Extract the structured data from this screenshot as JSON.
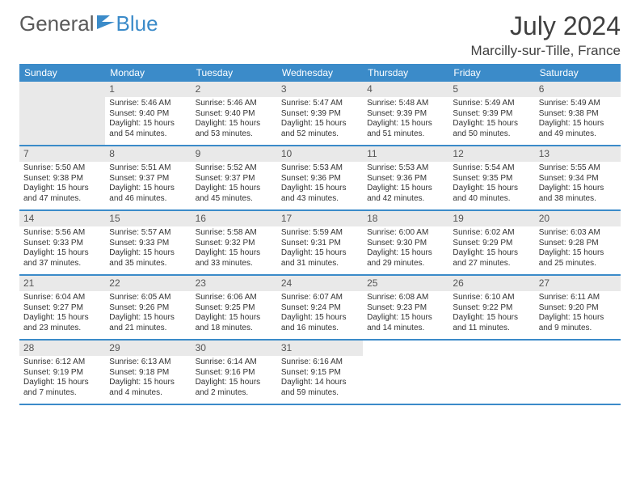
{
  "logo": {
    "text_left": "General",
    "text_right": "Blue",
    "flag_color": "#3b8bc9"
  },
  "title": "July 2024",
  "location": "Marcilly-sur-Tille, France",
  "colors": {
    "header_bg": "#3b8bc9",
    "header_text": "#ffffff",
    "cell_text": "#333333",
    "daynum_bg": "#e9e9e9",
    "border": "#3b8bc9",
    "page_bg": "#ffffff"
  },
  "day_headers": [
    "Sunday",
    "Monday",
    "Tuesday",
    "Wednesday",
    "Thursday",
    "Friday",
    "Saturday"
  ],
  "weeks": [
    [
      {
        "empty": true
      },
      {
        "n": "1",
        "sunrise": "5:46 AM",
        "sunset": "9:40 PM",
        "daylight": "15 hours and 54 minutes."
      },
      {
        "n": "2",
        "sunrise": "5:46 AM",
        "sunset": "9:40 PM",
        "daylight": "15 hours and 53 minutes."
      },
      {
        "n": "3",
        "sunrise": "5:47 AM",
        "sunset": "9:39 PM",
        "daylight": "15 hours and 52 minutes."
      },
      {
        "n": "4",
        "sunrise": "5:48 AM",
        "sunset": "9:39 PM",
        "daylight": "15 hours and 51 minutes."
      },
      {
        "n": "5",
        "sunrise": "5:49 AM",
        "sunset": "9:39 PM",
        "daylight": "15 hours and 50 minutes."
      },
      {
        "n": "6",
        "sunrise": "5:49 AM",
        "sunset": "9:38 PM",
        "daylight": "15 hours and 49 minutes."
      }
    ],
    [
      {
        "n": "7",
        "sunrise": "5:50 AM",
        "sunset": "9:38 PM",
        "daylight": "15 hours and 47 minutes."
      },
      {
        "n": "8",
        "sunrise": "5:51 AM",
        "sunset": "9:37 PM",
        "daylight": "15 hours and 46 minutes."
      },
      {
        "n": "9",
        "sunrise": "5:52 AM",
        "sunset": "9:37 PM",
        "daylight": "15 hours and 45 minutes."
      },
      {
        "n": "10",
        "sunrise": "5:53 AM",
        "sunset": "9:36 PM",
        "daylight": "15 hours and 43 minutes."
      },
      {
        "n": "11",
        "sunrise": "5:53 AM",
        "sunset": "9:36 PM",
        "daylight": "15 hours and 42 minutes."
      },
      {
        "n": "12",
        "sunrise": "5:54 AM",
        "sunset": "9:35 PM",
        "daylight": "15 hours and 40 minutes."
      },
      {
        "n": "13",
        "sunrise": "5:55 AM",
        "sunset": "9:34 PM",
        "daylight": "15 hours and 38 minutes."
      }
    ],
    [
      {
        "n": "14",
        "sunrise": "5:56 AM",
        "sunset": "9:33 PM",
        "daylight": "15 hours and 37 minutes."
      },
      {
        "n": "15",
        "sunrise": "5:57 AM",
        "sunset": "9:33 PM",
        "daylight": "15 hours and 35 minutes."
      },
      {
        "n": "16",
        "sunrise": "5:58 AM",
        "sunset": "9:32 PM",
        "daylight": "15 hours and 33 minutes."
      },
      {
        "n": "17",
        "sunrise": "5:59 AM",
        "sunset": "9:31 PM",
        "daylight": "15 hours and 31 minutes."
      },
      {
        "n": "18",
        "sunrise": "6:00 AM",
        "sunset": "9:30 PM",
        "daylight": "15 hours and 29 minutes."
      },
      {
        "n": "19",
        "sunrise": "6:02 AM",
        "sunset": "9:29 PM",
        "daylight": "15 hours and 27 minutes."
      },
      {
        "n": "20",
        "sunrise": "6:03 AM",
        "sunset": "9:28 PM",
        "daylight": "15 hours and 25 minutes."
      }
    ],
    [
      {
        "n": "21",
        "sunrise": "6:04 AM",
        "sunset": "9:27 PM",
        "daylight": "15 hours and 23 minutes."
      },
      {
        "n": "22",
        "sunrise": "6:05 AM",
        "sunset": "9:26 PM",
        "daylight": "15 hours and 21 minutes."
      },
      {
        "n": "23",
        "sunrise": "6:06 AM",
        "sunset": "9:25 PM",
        "daylight": "15 hours and 18 minutes."
      },
      {
        "n": "24",
        "sunrise": "6:07 AM",
        "sunset": "9:24 PM",
        "daylight": "15 hours and 16 minutes."
      },
      {
        "n": "25",
        "sunrise": "6:08 AM",
        "sunset": "9:23 PM",
        "daylight": "15 hours and 14 minutes."
      },
      {
        "n": "26",
        "sunrise": "6:10 AM",
        "sunset": "9:22 PM",
        "daylight": "15 hours and 11 minutes."
      },
      {
        "n": "27",
        "sunrise": "6:11 AM",
        "sunset": "9:20 PM",
        "daylight": "15 hours and 9 minutes."
      }
    ],
    [
      {
        "n": "28",
        "sunrise": "6:12 AM",
        "sunset": "9:19 PM",
        "daylight": "15 hours and 7 minutes."
      },
      {
        "n": "29",
        "sunrise": "6:13 AM",
        "sunset": "9:18 PM",
        "daylight": "15 hours and 4 minutes."
      },
      {
        "n": "30",
        "sunrise": "6:14 AM",
        "sunset": "9:16 PM",
        "daylight": "15 hours and 2 minutes."
      },
      {
        "n": "31",
        "sunrise": "6:16 AM",
        "sunset": "9:15 PM",
        "daylight": "14 hours and 59 minutes."
      },
      {
        "empty": true,
        "trailing": true
      },
      {
        "empty": true,
        "trailing": true
      },
      {
        "empty": true,
        "trailing": true
      }
    ]
  ],
  "labels": {
    "sunrise": "Sunrise:",
    "sunset": "Sunset:",
    "daylight": "Daylight:"
  }
}
